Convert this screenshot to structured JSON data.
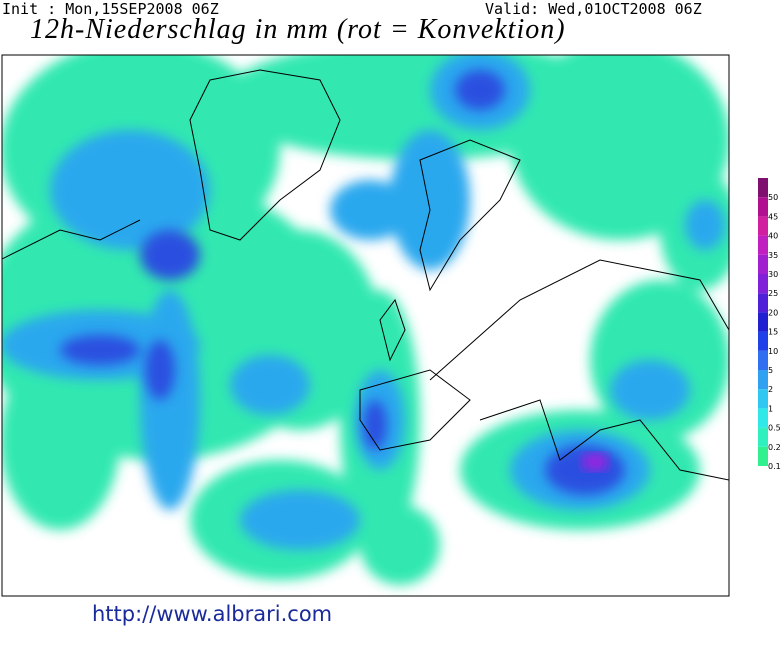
{
  "header": {
    "init": "Init : Mon,15SEP2008 06Z",
    "valid": "Valid: Wed,01OCT2008 06Z",
    "title": "12h-Niederschlag in mm (rot = Konvektion)"
  },
  "legend": {
    "levels": [
      0.1,
      0.2,
      0.5,
      1,
      2,
      5,
      10,
      15,
      20,
      25,
      30,
      35,
      40,
      45,
      50
    ]
  },
  "footer": {
    "url": "http://www.albrari.com"
  }
}
